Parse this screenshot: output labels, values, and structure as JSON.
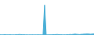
{
  "chart_data": {
    "type": "area",
    "x": [
      0,
      1,
      2,
      3,
      4,
      5,
      6,
      7,
      8,
      9,
      10,
      11,
      12,
      13,
      14,
      15,
      16,
      17,
      18,
      19,
      20,
      21,
      22,
      23,
      24,
      25,
      26,
      27,
      28,
      29,
      30,
      31,
      32,
      33,
      34,
      35,
      36,
      37,
      38,
      39,
      40,
      41,
      42,
      43,
      44,
      45,
      46,
      47,
      48,
      49,
      50,
      51,
      52,
      53,
      54,
      55,
      56,
      57,
      58,
      59
    ],
    "values": [
      5,
      3,
      4,
      8,
      5,
      4,
      6,
      5,
      3,
      4,
      6,
      8,
      12,
      10,
      8,
      6,
      5,
      4,
      3,
      4,
      5,
      4,
      3,
      4,
      5,
      4,
      3,
      4,
      600,
      4,
      3,
      5,
      4,
      6,
      8,
      10,
      12,
      8,
      6,
      5,
      4,
      5,
      6,
      8,
      12,
      10,
      14,
      18,
      16,
      12,
      10,
      14,
      16,
      18,
      20,
      22,
      18,
      16,
      20,
      24
    ],
    "color": "#4bafd6",
    "xlim": [
      0,
      59
    ],
    "ylim": [
      0,
      700
    ],
    "tick_labels": false,
    "grid": false
  }
}
